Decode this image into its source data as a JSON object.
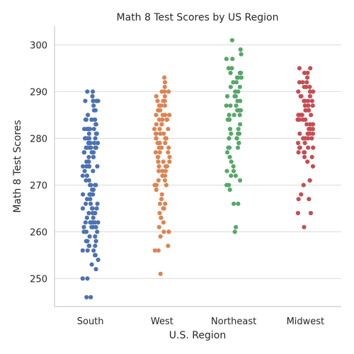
{
  "chart_data": {
    "type": "scatter",
    "subtype": "strip",
    "title": "Math 8 Test Scores by US Region",
    "xlabel": "U.S. Region",
    "ylabel": "Math 8 Test Scores",
    "ylim": [
      244,
      304
    ],
    "yticks": [
      250,
      260,
      270,
      280,
      290,
      300
    ],
    "grid": "horizontal",
    "legend": "none",
    "categories": [
      "South",
      "West",
      "Northeast",
      "Midwest"
    ],
    "series": [
      {
        "category": "South",
        "color": "#4c72b0",
        "values": [
          290,
          290,
          289,
          288,
          288,
          288,
          288,
          288,
          287,
          286,
          286,
          285,
          284,
          284,
          284,
          284,
          284,
          284,
          283,
          283,
          282,
          282,
          282,
          282,
          282,
          282,
          281,
          281,
          281,
          280,
          280,
          280,
          280,
          280,
          279,
          279,
          279,
          279,
          279,
          278,
          278,
          278,
          278,
          278,
          278,
          278,
          277,
          277,
          277,
          277,
          276,
          276,
          276,
          275,
          275,
          275,
          274,
          274,
          274,
          274,
          274,
          273,
          273,
          272,
          272,
          272,
          271,
          271,
          270,
          270,
          270,
          270,
          269,
          269,
          268,
          268,
          268,
          268,
          268,
          267,
          267,
          266,
          266,
          266,
          265,
          265,
          265,
          265,
          264,
          264,
          264,
          263,
          263,
          262,
          262,
          262,
          262,
          262,
          262,
          261,
          261,
          261,
          261,
          260,
          260,
          260,
          259,
          259,
          258,
          258,
          258,
          257,
          257,
          257,
          256,
          256,
          256,
          255,
          255,
          254,
          253,
          252,
          250,
          250,
          246,
          246
        ]
      },
      {
        "category": "West",
        "color": "#dd8452",
        "values": [
          293,
          292,
          291,
          290,
          290,
          290,
          289,
          289,
          288,
          288,
          288,
          287,
          287,
          287,
          287,
          286,
          286,
          286,
          285,
          285,
          285,
          285,
          284,
          284,
          284,
          284,
          283,
          283,
          283,
          282,
          282,
          282,
          281,
          281,
          281,
          281,
          280,
          280,
          280,
          280,
          279,
          279,
          279,
          278,
          278,
          278,
          277,
          277,
          277,
          276,
          276,
          276,
          275,
          275,
          275,
          274,
          274,
          274,
          273,
          273,
          273,
          272,
          272,
          271,
          271,
          270,
          270,
          270,
          269,
          268,
          267,
          266,
          266,
          265,
          265,
          264,
          263,
          263,
          262,
          261,
          260,
          260,
          260,
          259,
          257,
          256,
          256,
          251
        ]
      },
      {
        "category": "Northeast",
        "color": "#55a868",
        "values": [
          301,
          299,
          298,
          297,
          297,
          295,
          295,
          294,
          294,
          294,
          293,
          293,
          293,
          292,
          292,
          291,
          291,
          290,
          290,
          289,
          289,
          289,
          288,
          288,
          287,
          287,
          287,
          286,
          286,
          286,
          285,
          285,
          285,
          284,
          284,
          283,
          282,
          282,
          281,
          281,
          281,
          280,
          280,
          280,
          279,
          279,
          278,
          278,
          278,
          277,
          276,
          275,
          274,
          273,
          273,
          272,
          272,
          271,
          270,
          270,
          269,
          266,
          266,
          261,
          260
        ]
      },
      {
        "category": "Midwest",
        "color": "#c44e52",
        "values": [
          295,
          295,
          294,
          294,
          293,
          292,
          292,
          292,
          291,
          291,
          291,
          290,
          290,
          290,
          289,
          289,
          289,
          288,
          288,
          288,
          288,
          287,
          287,
          287,
          287,
          286,
          286,
          286,
          286,
          285,
          285,
          285,
          285,
          285,
          284,
          284,
          284,
          284,
          283,
          283,
          283,
          282,
          282,
          282,
          282,
          281,
          281,
          281,
          281,
          281,
          280,
          280,
          280,
          280,
          279,
          279,
          278,
          278,
          278,
          278,
          277,
          277,
          277,
          276,
          276,
          275,
          274,
          271,
          271,
          270,
          268,
          267,
          267,
          264,
          264,
          261
        ]
      }
    ]
  }
}
